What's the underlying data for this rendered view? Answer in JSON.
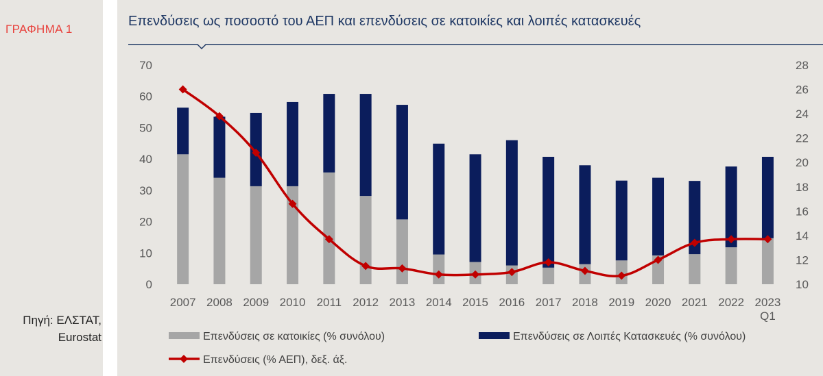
{
  "graph_label": "ΓΡΑΦΗΜΑ 1",
  "source_lines": [
    "Πηγή: ΕΛΣΤΑΤ,",
    "Eurostat"
  ],
  "colors": {
    "title": "#1f3864",
    "graph_label": "#e8413c",
    "housing": "#a6a6a6",
    "other": "#0b1d5c",
    "gdp_line": "#c00000",
    "background": "#e8e6e2"
  },
  "chart_data": {
    "type": "bar",
    "stacked": true,
    "title": "Επενδύσεις ως ποσοστό του ΑΕΠ και επενδύσεις σε κατοικίες και λοιπές κατασκευές",
    "categories": [
      "2007",
      "2008",
      "2009",
      "2010",
      "2011",
      "2012",
      "2013",
      "2014",
      "2015",
      "2016",
      "2017",
      "2018",
      "2019",
      "2020",
      "2021",
      "2022",
      "2023 Q1"
    ],
    "category_lines": [
      [
        "2007"
      ],
      [
        "2008"
      ],
      [
        "2009"
      ],
      [
        "2010"
      ],
      [
        "2011"
      ],
      [
        "2012"
      ],
      [
        "2013"
      ],
      [
        "2014"
      ],
      [
        "2015"
      ],
      [
        "2016"
      ],
      [
        "2017"
      ],
      [
        "2018"
      ],
      [
        "2019"
      ],
      [
        "2020"
      ],
      [
        "2021"
      ],
      [
        "2022"
      ],
      [
        "2023",
        "Q1"
      ]
    ],
    "series": [
      {
        "name": "Επενδύσεις σε κατοικίες (% συνόλου)",
        "type": "bar",
        "axis": "left",
        "color": "#a6a6a6",
        "values": [
          41.5,
          34,
          31.3,
          31.3,
          35.7,
          28.2,
          20.7,
          9.5,
          7.1,
          6.0,
          5.3,
          6.4,
          7.6,
          9.2,
          9.6,
          11.8,
          14.7
        ]
      },
      {
        "name": "Επενδύσεις σε Λοιπές Κατασκευές (% συνόλου)",
        "type": "bar",
        "axis": "left",
        "color": "#0b1d5c",
        "values": [
          14.9,
          19.5,
          23.4,
          26.9,
          25.1,
          32.6,
          36.6,
          35.4,
          34.4,
          40.0,
          35.4,
          31.6,
          25.5,
          24.8,
          23.4,
          25.8,
          26.0
        ]
      },
      {
        "name": "Επενδύσεις (% ΑΕΠ), δεξ. άξ.",
        "type": "line",
        "axis": "right",
        "color": "#c00000",
        "values": [
          26.0,
          23.8,
          20.8,
          16.6,
          13.7,
          11.5,
          11.3,
          10.8,
          10.8,
          11.0,
          11.8,
          11.1,
          10.7,
          12.0,
          13.4,
          13.7,
          13.7
        ]
      }
    ],
    "y_left": {
      "min": 0,
      "max": 70,
      "ticks": [
        0,
        10,
        20,
        30,
        40,
        50,
        60,
        70
      ]
    },
    "y_right": {
      "min": 10,
      "max": 28,
      "ticks": [
        10,
        12,
        14,
        16,
        18,
        20,
        22,
        24,
        26,
        28
      ]
    },
    "grid": false,
    "legend_position": "bottom"
  }
}
